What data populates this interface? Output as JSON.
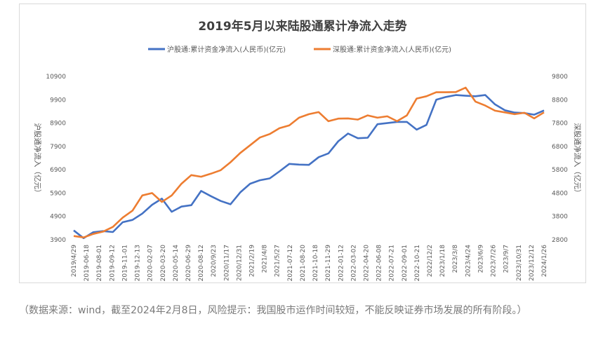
{
  "chart_data": {
    "type": "line",
    "title": "2019年5月以来陆股通累计净流入走势",
    "ylabel_left": "沪股通净流入（亿元）",
    "ylabel_right": "深股通净流入（亿元）",
    "ylim_left": [
      3900,
      10900
    ],
    "ylim_right": [
      2800,
      9800
    ],
    "yticks_left": [
      "10900",
      "9900",
      "8900",
      "7900",
      "6900",
      "5900",
      "4900",
      "3900"
    ],
    "yticks_right": [
      "9800",
      "8800",
      "7800",
      "6800",
      "5800",
      "4800",
      "3800",
      "2800"
    ],
    "grid": false,
    "legend_position": "top",
    "x_ticks": [
      "2019/4/29",
      "2019-06-18",
      "2019-08-01",
      "2019-09-12",
      "2019-11-01",
      "2019-12-13",
      "2020-02-07",
      "2020-03-20",
      "2020-05-14",
      "2020-06-29",
      "2020-08-12",
      "2020/9/23",
      "2020/11/17",
      "2020/12/31",
      "2021/2/19",
      "2021/4/8",
      "2021/5/27",
      "2021-07-12",
      "2021-08-20",
      "2021-10-18",
      "2021-11-29",
      "2022-01-12",
      "2022-03-02",
      "2022-04-20",
      "2022-06-08",
      "2022-07-21",
      "2022-09-01",
      "2022-10-21",
      "2022/12/2",
      "2023/1/18",
      "2023/3/8",
      "2023/4/24",
      "2023/6/9",
      "2023/7/26",
      "2023/9/7",
      "2023/10/31",
      "2023/12/12",
      "2024/1/26"
    ],
    "series": [
      {
        "name": "沪股通:累计资金净流入(人民币)(亿元)",
        "axis": "left",
        "color": "#4472c4",
        "values": [
          4300,
          3970,
          4220,
          4270,
          4230,
          4650,
          4750,
          5020,
          5400,
          5660,
          5100,
          5320,
          5380,
          5990,
          5770,
          5560,
          5420,
          5930,
          6300,
          6450,
          6530,
          6830,
          7150,
          7120,
          7110,
          7440,
          7600,
          8120,
          8450,
          8250,
          8270,
          8850,
          8900,
          8950,
          8950,
          8620,
          8820,
          9900,
          10020,
          10100,
          10070,
          10050,
          10100,
          9700,
          9450,
          9350,
          9330,
          9260,
          9440
        ]
      },
      {
        "name": "深股通:累计资金净流入(人民币)(亿元)",
        "axis": "right",
        "color": "#ed7d31",
        "values": [
          2960,
          2900,
          3050,
          3150,
          3350,
          3750,
          4050,
          4700,
          4800,
          4420,
          4700,
          5200,
          5570,
          5500,
          5630,
          5780,
          6120,
          6520,
          6850,
          7180,
          7330,
          7580,
          7700,
          8030,
          8180,
          8270,
          7880,
          7990,
          8000,
          7950,
          8130,
          8030,
          8090,
          7880,
          8130,
          8850,
          8950,
          9120,
          9120,
          9130,
          9320,
          8720,
          8550,
          8330,
          8260,
          8180,
          8240,
          8000,
          8260
        ]
      }
    ]
  },
  "caption": "（数据来源：wind，截至2024年2月8日，风险提示：我国股市运作时间较短，不能反映证券市场发展的所有阶段。）"
}
